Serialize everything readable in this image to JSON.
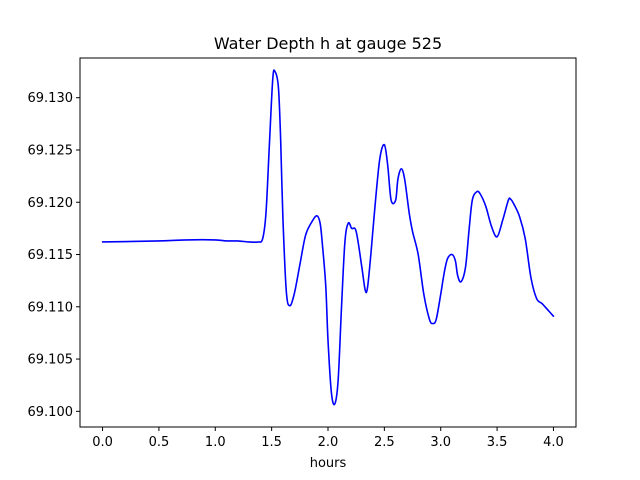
{
  "chart_data": {
    "type": "line",
    "title": "Water Depth h at gauge 525",
    "xlabel": "hours",
    "ylabel": "",
    "xlim": [
      -0.2,
      4.2
    ],
    "ylim": [
      69.0985,
      69.1338
    ],
    "grid": false,
    "legend": "none",
    "x_ticks": [
      0.0,
      0.5,
      1.0,
      1.5,
      2.0,
      2.5,
      3.0,
      3.5,
      4.0
    ],
    "x_tick_labels": [
      "0.0",
      "0.5",
      "1.0",
      "1.5",
      "2.0",
      "2.5",
      "3.0",
      "3.5",
      "4.0"
    ],
    "y_ticks": [
      69.1,
      69.105,
      69.11,
      69.115,
      69.12,
      69.125,
      69.13
    ],
    "y_tick_labels": [
      "69.100",
      "69.105",
      "69.110",
      "69.115",
      "69.120",
      "69.125",
      "69.130"
    ],
    "series": [
      {
        "color": "#0000ff",
        "x": [
          0.0,
          0.5,
          0.75,
          1.0,
          1.1,
          1.2,
          1.3,
          1.38,
          1.42,
          1.45,
          1.48,
          1.51,
          1.53,
          1.56,
          1.58,
          1.6,
          1.63,
          1.66,
          1.7,
          1.75,
          1.8,
          1.85,
          1.9,
          1.93,
          1.95,
          1.98,
          2.0,
          2.03,
          2.06,
          2.09,
          2.12,
          2.15,
          2.18,
          2.21,
          2.25,
          2.3,
          2.33,
          2.35,
          2.38,
          2.42,
          2.46,
          2.5,
          2.53,
          2.56,
          2.6,
          2.62,
          2.65,
          2.68,
          2.72,
          2.75,
          2.8,
          2.85,
          2.9,
          2.93,
          2.96,
          3.0,
          3.03,
          3.06,
          3.1,
          3.13,
          3.15,
          3.18,
          3.22,
          3.25,
          3.28,
          3.32,
          3.35,
          3.4,
          3.45,
          3.5,
          3.55,
          3.6,
          3.62,
          3.65,
          3.7,
          3.75,
          3.8,
          3.85,
          3.9,
          3.95,
          4.0
        ],
        "y": [
          69.1162,
          69.1163,
          69.1164,
          69.1164,
          69.1163,
          69.1163,
          69.1162,
          69.1162,
          69.1165,
          69.119,
          69.1255,
          69.1318,
          69.1325,
          69.131,
          69.126,
          69.1185,
          69.1115,
          69.1101,
          69.1112,
          69.114,
          69.1168,
          69.118,
          69.1187,
          69.118,
          69.116,
          69.112,
          69.1068,
          69.1018,
          69.1007,
          69.103,
          69.11,
          69.1162,
          69.118,
          69.1175,
          69.1172,
          69.1138,
          69.1116,
          69.1118,
          69.115,
          69.12,
          69.1242,
          69.1255,
          69.1235,
          69.1202,
          69.1202,
          69.1222,
          69.1232,
          69.1222,
          69.119,
          69.1172,
          69.115,
          69.1112,
          69.1088,
          69.1084,
          69.1088,
          69.1112,
          69.1132,
          69.1146,
          69.115,
          69.1144,
          69.113,
          69.1124,
          69.1138,
          69.1172,
          69.1202,
          69.121,
          69.1208,
          69.1196,
          69.1177,
          69.1167,
          69.1183,
          69.1202,
          69.1203,
          69.1198,
          69.1186,
          69.1165,
          69.1128,
          69.1108,
          69.1103,
          69.1097,
          69.1091
        ]
      }
    ]
  }
}
